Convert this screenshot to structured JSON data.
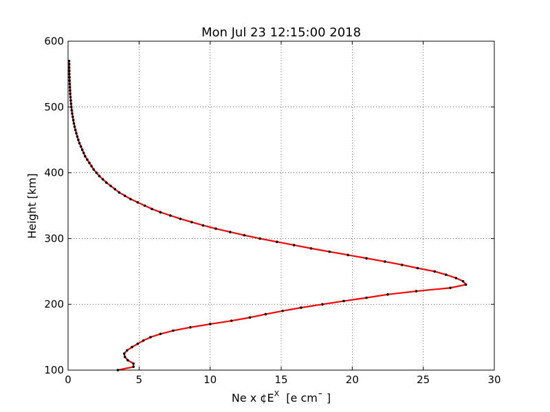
{
  "chart_data": {
    "type": "line",
    "title": "Mon Jul 23 12:15:00 2018",
    "xlabel": "Ne x ¢E",
    "xlabel_sup": "X",
    "xlabel_unit": "  [e cm¯ ]",
    "ylabel": "Height [km]",
    "xlim": [
      0,
      30
    ],
    "ylim": [
      100,
      600
    ],
    "xticks": [
      0,
      5,
      10,
      15,
      20,
      25,
      30
    ],
    "yticks": [
      100,
      200,
      300,
      400,
      500,
      600
    ],
    "xtick_labels": [
      "0",
      "5",
      "10",
      "15",
      "20",
      "25",
      "30"
    ],
    "ytick_labels": [
      "100",
      "200",
      "300",
      "400",
      "500",
      "600"
    ],
    "grid": true,
    "series": [
      {
        "line_color": "#ff0000",
        "marker_color": "#000000",
        "points": [
          {
            "x": 3.5,
            "y": 100
          },
          {
            "x": 4.6,
            "y": 105
          },
          {
            "x": 4.6,
            "y": 110
          },
          {
            "x": 4.2,
            "y": 115
          },
          {
            "x": 4.0,
            "y": 120
          },
          {
            "x": 3.95,
            "y": 125
          },
          {
            "x": 4.15,
            "y": 130
          },
          {
            "x": 4.5,
            "y": 135
          },
          {
            "x": 4.9,
            "y": 140
          },
          {
            "x": 5.3,
            "y": 145
          },
          {
            "x": 5.8,
            "y": 150
          },
          {
            "x": 6.5,
            "y": 155
          },
          {
            "x": 7.4,
            "y": 160
          },
          {
            "x": 8.6,
            "y": 165
          },
          {
            "x": 10.0,
            "y": 170
          },
          {
            "x": 11.5,
            "y": 175
          },
          {
            "x": 12.8,
            "y": 180
          },
          {
            "x": 13.9,
            "y": 185
          },
          {
            "x": 15.1,
            "y": 190
          },
          {
            "x": 16.4,
            "y": 195
          },
          {
            "x": 17.9,
            "y": 200
          },
          {
            "x": 19.4,
            "y": 205
          },
          {
            "x": 21.0,
            "y": 210
          },
          {
            "x": 22.5,
            "y": 215
          },
          {
            "x": 24.5,
            "y": 220
          },
          {
            "x": 26.9,
            "y": 225
          },
          {
            "x": 28.0,
            "y": 230
          },
          {
            "x": 27.8,
            "y": 235
          },
          {
            "x": 27.3,
            "y": 240
          },
          {
            "x": 26.6,
            "y": 245
          },
          {
            "x": 25.8,
            "y": 250
          },
          {
            "x": 24.6,
            "y": 255
          },
          {
            "x": 23.5,
            "y": 260
          },
          {
            "x": 22.3,
            "y": 265
          },
          {
            "x": 21.0,
            "y": 270
          },
          {
            "x": 19.7,
            "y": 275
          },
          {
            "x": 18.4,
            "y": 280
          },
          {
            "x": 17.1,
            "y": 285
          },
          {
            "x": 15.9,
            "y": 290
          },
          {
            "x": 14.7,
            "y": 295
          },
          {
            "x": 13.5,
            "y": 300
          },
          {
            "x": 12.4,
            "y": 305
          },
          {
            "x": 11.4,
            "y": 310
          },
          {
            "x": 10.4,
            "y": 315
          },
          {
            "x": 9.5,
            "y": 320
          },
          {
            "x": 8.7,
            "y": 325
          },
          {
            "x": 7.9,
            "y": 330
          },
          {
            "x": 7.2,
            "y": 335
          },
          {
            "x": 6.5,
            "y": 340
          },
          {
            "x": 5.9,
            "y": 345
          },
          {
            "x": 5.4,
            "y": 350
          },
          {
            "x": 4.9,
            "y": 355
          },
          {
            "x": 4.4,
            "y": 360
          },
          {
            "x": 4.0,
            "y": 365
          },
          {
            "x": 3.6,
            "y": 370
          },
          {
            "x": 3.3,
            "y": 375
          },
          {
            "x": 3.0,
            "y": 380
          },
          {
            "x": 2.7,
            "y": 385
          },
          {
            "x": 2.45,
            "y": 390
          },
          {
            "x": 2.2,
            "y": 395
          },
          {
            "x": 2.0,
            "y": 400
          },
          {
            "x": 1.8,
            "y": 405
          },
          {
            "x": 1.65,
            "y": 410
          },
          {
            "x": 1.5,
            "y": 415
          },
          {
            "x": 1.35,
            "y": 420
          },
          {
            "x": 1.2,
            "y": 425
          },
          {
            "x": 1.1,
            "y": 430
          },
          {
            "x": 1.0,
            "y": 435
          },
          {
            "x": 0.9,
            "y": 440
          },
          {
            "x": 0.8,
            "y": 445
          },
          {
            "x": 0.72,
            "y": 450
          },
          {
            "x": 0.65,
            "y": 455
          },
          {
            "x": 0.58,
            "y": 460
          },
          {
            "x": 0.52,
            "y": 465
          },
          {
            "x": 0.46,
            "y": 470
          },
          {
            "x": 0.41,
            "y": 475
          },
          {
            "x": 0.37,
            "y": 480
          },
          {
            "x": 0.33,
            "y": 485
          },
          {
            "x": 0.29,
            "y": 490
          },
          {
            "x": 0.26,
            "y": 495
          },
          {
            "x": 0.23,
            "y": 500
          },
          {
            "x": 0.21,
            "y": 505
          },
          {
            "x": 0.19,
            "y": 510
          },
          {
            "x": 0.17,
            "y": 515
          },
          {
            "x": 0.15,
            "y": 520
          },
          {
            "x": 0.14,
            "y": 525
          },
          {
            "x": 0.13,
            "y": 530
          },
          {
            "x": 0.12,
            "y": 535
          },
          {
            "x": 0.11,
            "y": 540
          },
          {
            "x": 0.1,
            "y": 545
          },
          {
            "x": 0.09,
            "y": 550
          },
          {
            "x": 0.09,
            "y": 555
          },
          {
            "x": 0.08,
            "y": 560
          },
          {
            "x": 0.08,
            "y": 565
          },
          {
            "x": 0.07,
            "y": 570
          }
        ]
      }
    ]
  }
}
